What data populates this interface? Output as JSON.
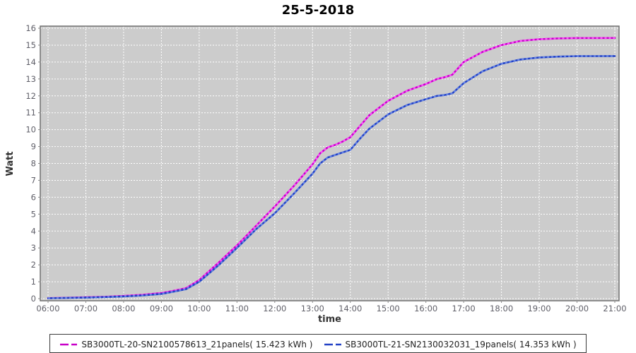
{
  "chart_data": {
    "type": "line",
    "title": "25-5-2018",
    "xlabel": "time",
    "ylabel": "Watt",
    "x_tick_labels": [
      "06:00",
      "07:00",
      "08:00",
      "09:00",
      "10:00",
      "11:00",
      "12:00",
      "13:00",
      "14:00",
      "15:00",
      "16:00",
      "17:00",
      "18:00",
      "19:00",
      "20:00",
      "21:00"
    ],
    "x_tick_hours": [
      6,
      7,
      8,
      9,
      10,
      11,
      12,
      13,
      14,
      15,
      16,
      17,
      18,
      19,
      20,
      21
    ],
    "x_range_hours": [
      6,
      21
    ],
    "ylim": [
      0,
      16
    ],
    "y_tick_step": 1,
    "grid": true,
    "grid_style": "white dashed on gray plot background",
    "legend_position": "bottom",
    "colors": {
      "plot_background": "#cccccc",
      "plot_border": "#707070",
      "gridline": "#ffffff",
      "tick_text": "#5f5f68",
      "title_text": "#000000",
      "series1": "#c800c8",
      "series1_light": "#ff50ff",
      "series2": "#2342c6",
      "series2_light": "#6685e6"
    },
    "x_hours": [
      6,
      6.5,
      7,
      7.5,
      8,
      8.5,
      9,
      9.3,
      9.65,
      10,
      10.5,
      11,
      11.5,
      12,
      12.5,
      13,
      13.2,
      13.4,
      13.6,
      13.8,
      14,
      14.25,
      14.5,
      15,
      15.5,
      16,
      16.3,
      16.5,
      16.7,
      17,
      17.5,
      18,
      18.5,
      19,
      19.5,
      20,
      20.5,
      21
    ],
    "series": [
      {
        "name": "SB3000TL-20-SN2100578613_21panels( 15.423 kWh )",
        "total_kwh": 15.423,
        "color": "#c800c8",
        "color_light": "#ff50ff",
        "values": [
          0.03,
          0.05,
          0.08,
          0.11,
          0.16,
          0.23,
          0.33,
          0.45,
          0.62,
          1.1,
          2.1,
          3.15,
          4.3,
          5.45,
          6.65,
          7.95,
          8.6,
          8.95,
          9.1,
          9.3,
          9.55,
          10.2,
          10.85,
          11.7,
          12.3,
          12.7,
          13.0,
          13.1,
          13.25,
          14.0,
          14.6,
          15.0,
          15.25,
          15.35,
          15.4,
          15.42,
          15.42,
          15.423
        ]
      },
      {
        "name": "SB3000TL-21-SN2130032031_19panels( 14.353 kWh )",
        "total_kwh": 14.353,
        "color": "#2342c6",
        "color_light": "#6685e6",
        "values": [
          0.02,
          0.04,
          0.06,
          0.09,
          0.13,
          0.19,
          0.28,
          0.4,
          0.56,
          1.0,
          1.95,
          3.0,
          4.1,
          5.05,
          6.2,
          7.4,
          8.0,
          8.35,
          8.5,
          8.65,
          8.8,
          9.45,
          10.05,
          10.9,
          11.45,
          11.8,
          12.0,
          12.05,
          12.15,
          12.75,
          13.45,
          13.9,
          14.15,
          14.27,
          14.32,
          14.35,
          14.35,
          14.353
        ]
      }
    ]
  }
}
